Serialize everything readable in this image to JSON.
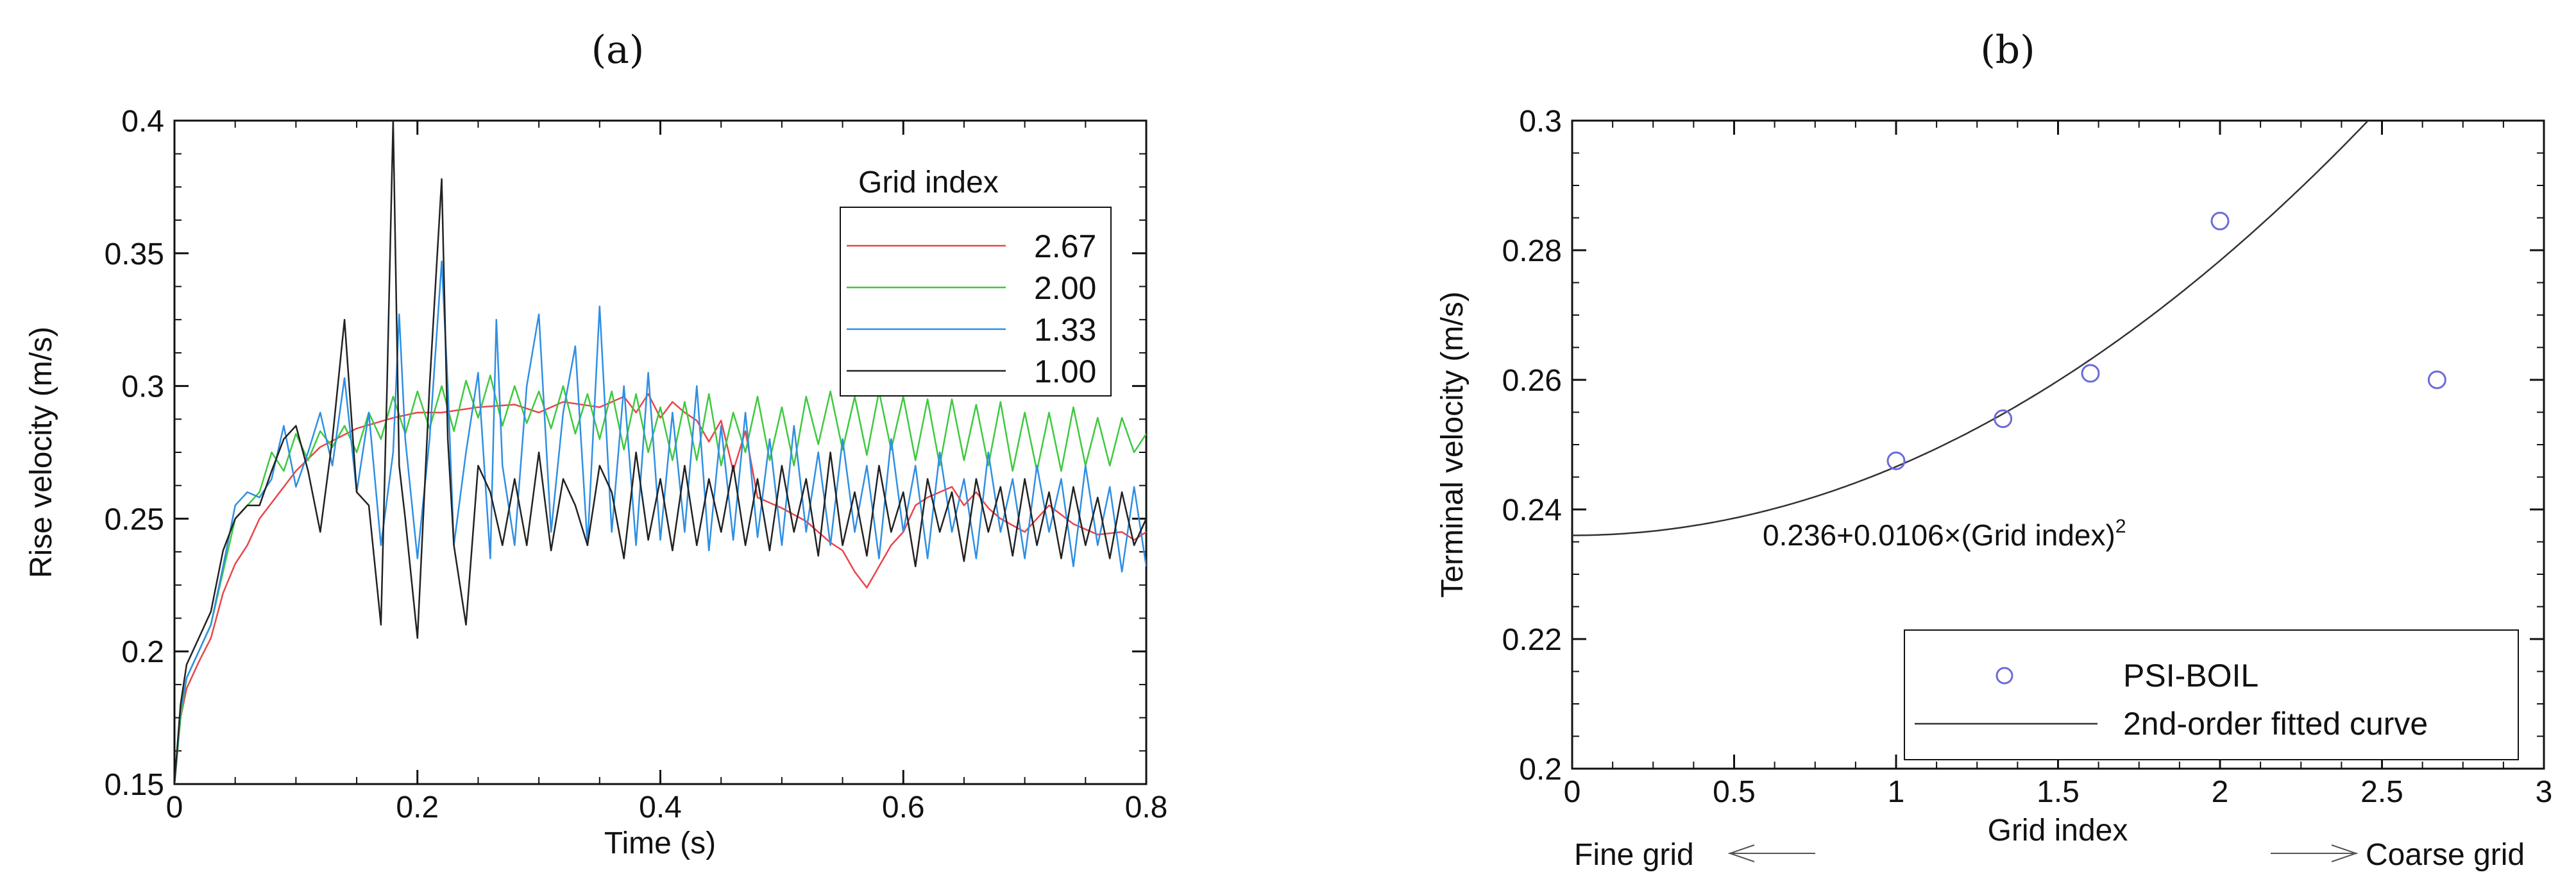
{
  "chart_data": [
    {
      "panel_label": "(a)",
      "type": "line",
      "xlabel": "Time (s)",
      "ylabel": "Rise velocity (m/s)",
      "xlim": [
        0,
        0.8
      ],
      "ylim": [
        0.15,
        0.4
      ],
      "xticks": [
        "0",
        "0.2",
        "0.4",
        "0.6",
        "0.8"
      ],
      "yticks": [
        "0.15",
        "0.2",
        "0.25",
        "0.3",
        "0.35",
        "0.4"
      ],
      "legend_title": "Grid index",
      "legend_position": "top-right",
      "series": [
        {
          "name": "2.67",
          "color": "#e8464a",
          "x": [
            0.0,
            0.005,
            0.01,
            0.02,
            0.03,
            0.04,
            0.05,
            0.06,
            0.07,
            0.08,
            0.1,
            0.12,
            0.15,
            0.18,
            0.2,
            0.22,
            0.25,
            0.28,
            0.3,
            0.32,
            0.35,
            0.37,
            0.38,
            0.39,
            0.4,
            0.41,
            0.42,
            0.43,
            0.44,
            0.45,
            0.46,
            0.47,
            0.48,
            0.5,
            0.52,
            0.54,
            0.55,
            0.56,
            0.57,
            0.58,
            0.59,
            0.6,
            0.61,
            0.62,
            0.63,
            0.64,
            0.65,
            0.66,
            0.67,
            0.68,
            0.7,
            0.72,
            0.74,
            0.76,
            0.78,
            0.79,
            0.8
          ],
          "y": [
            0.15,
            0.175,
            0.186,
            0.196,
            0.205,
            0.222,
            0.233,
            0.24,
            0.25,
            0.256,
            0.268,
            0.277,
            0.284,
            0.288,
            0.29,
            0.29,
            0.292,
            0.293,
            0.29,
            0.294,
            0.292,
            0.296,
            0.29,
            0.297,
            0.288,
            0.294,
            0.29,
            0.287,
            0.279,
            0.287,
            0.268,
            0.283,
            0.258,
            0.254,
            0.249,
            0.241,
            0.238,
            0.23,
            0.224,
            0.232,
            0.24,
            0.245,
            0.255,
            0.258,
            0.26,
            0.262,
            0.255,
            0.26,
            0.254,
            0.25,
            0.245,
            0.255,
            0.248,
            0.244,
            0.245,
            0.242,
            0.245
          ]
        },
        {
          "name": "2.00",
          "color": "#3ec93e",
          "x": [
            0.0,
            0.005,
            0.01,
            0.02,
            0.03,
            0.04,
            0.05,
            0.06,
            0.07,
            0.08,
            0.09,
            0.1,
            0.11,
            0.12,
            0.13,
            0.14,
            0.15,
            0.16,
            0.17,
            0.18,
            0.19,
            0.2,
            0.21,
            0.22,
            0.23,
            0.24,
            0.25,
            0.26,
            0.27,
            0.28,
            0.29,
            0.3,
            0.31,
            0.32,
            0.33,
            0.34,
            0.35,
            0.36,
            0.37,
            0.38,
            0.39,
            0.4,
            0.41,
            0.42,
            0.43,
            0.44,
            0.45,
            0.46,
            0.47,
            0.48,
            0.49,
            0.5,
            0.51,
            0.52,
            0.53,
            0.54,
            0.55,
            0.56,
            0.57,
            0.58,
            0.59,
            0.6,
            0.61,
            0.62,
            0.63,
            0.64,
            0.65,
            0.66,
            0.67,
            0.68,
            0.69,
            0.7,
            0.71,
            0.72,
            0.73,
            0.74,
            0.75,
            0.76,
            0.77,
            0.78,
            0.79,
            0.8
          ],
          "y": [
            0.15,
            0.175,
            0.19,
            0.2,
            0.21,
            0.23,
            0.25,
            0.255,
            0.26,
            0.275,
            0.268,
            0.282,
            0.272,
            0.283,
            0.277,
            0.285,
            0.275,
            0.29,
            0.28,
            0.296,
            0.282,
            0.298,
            0.284,
            0.3,
            0.283,
            0.302,
            0.288,
            0.304,
            0.285,
            0.3,
            0.286,
            0.298,
            0.284,
            0.3,
            0.282,
            0.297,
            0.28,
            0.298,
            0.276,
            0.297,
            0.275,
            0.292,
            0.272,
            0.294,
            0.272,
            0.297,
            0.27,
            0.29,
            0.275,
            0.296,
            0.272,
            0.292,
            0.27,
            0.296,
            0.278,
            0.298,
            0.276,
            0.296,
            0.274,
            0.298,
            0.276,
            0.296,
            0.272,
            0.295,
            0.27,
            0.295,
            0.272,
            0.293,
            0.27,
            0.294,
            0.268,
            0.29,
            0.268,
            0.29,
            0.268,
            0.292,
            0.27,
            0.288,
            0.27,
            0.288,
            0.275,
            0.282
          ]
        },
        {
          "name": "1.33",
          "color": "#2f8fe3",
          "x": [
            0.0,
            0.005,
            0.01,
            0.02,
            0.03,
            0.04,
            0.05,
            0.06,
            0.07,
            0.08,
            0.09,
            0.1,
            0.11,
            0.12,
            0.13,
            0.14,
            0.15,
            0.16,
            0.17,
            0.18,
            0.185,
            0.19,
            0.2,
            0.21,
            0.22,
            0.225,
            0.23,
            0.24,
            0.25,
            0.26,
            0.265,
            0.27,
            0.28,
            0.29,
            0.3,
            0.31,
            0.32,
            0.33,
            0.34,
            0.35,
            0.36,
            0.37,
            0.38,
            0.39,
            0.4,
            0.41,
            0.42,
            0.43,
            0.44,
            0.45,
            0.46,
            0.47,
            0.48,
            0.49,
            0.5,
            0.51,
            0.52,
            0.53,
            0.54,
            0.55,
            0.56,
            0.57,
            0.58,
            0.59,
            0.6,
            0.61,
            0.62,
            0.63,
            0.64,
            0.65,
            0.66,
            0.67,
            0.68,
            0.69,
            0.7,
            0.71,
            0.72,
            0.73,
            0.74,
            0.75,
            0.76,
            0.77,
            0.78,
            0.79,
            0.8
          ],
          "y": [
            0.15,
            0.178,
            0.19,
            0.2,
            0.21,
            0.232,
            0.255,
            0.26,
            0.258,
            0.265,
            0.285,
            0.262,
            0.275,
            0.29,
            0.27,
            0.303,
            0.26,
            0.29,
            0.24,
            0.275,
            0.327,
            0.28,
            0.235,
            0.28,
            0.347,
            0.3,
            0.24,
            0.275,
            0.305,
            0.235,
            0.325,
            0.27,
            0.24,
            0.3,
            0.327,
            0.245,
            0.29,
            0.315,
            0.24,
            0.33,
            0.245,
            0.3,
            0.24,
            0.305,
            0.242,
            0.29,
            0.245,
            0.3,
            0.238,
            0.285,
            0.242,
            0.29,
            0.243,
            0.28,
            0.24,
            0.285,
            0.245,
            0.275,
            0.24,
            0.28,
            0.245,
            0.27,
            0.235,
            0.28,
            0.245,
            0.27,
            0.235,
            0.275,
            0.245,
            0.265,
            0.235,
            0.275,
            0.245,
            0.265,
            0.235,
            0.27,
            0.245,
            0.265,
            0.232,
            0.27,
            0.24,
            0.262,
            0.23,
            0.262,
            0.232
          ]
        },
        {
          "name": "1.00",
          "color": "#222222",
          "x": [
            0.0,
            0.005,
            0.01,
            0.02,
            0.03,
            0.04,
            0.05,
            0.06,
            0.07,
            0.08,
            0.09,
            0.1,
            0.11,
            0.12,
            0.13,
            0.14,
            0.15,
            0.16,
            0.17,
            0.175,
            0.18,
            0.185,
            0.19,
            0.2,
            0.21,
            0.22,
            0.225,
            0.23,
            0.24,
            0.25,
            0.26,
            0.27,
            0.28,
            0.29,
            0.3,
            0.31,
            0.32,
            0.33,
            0.34,
            0.35,
            0.36,
            0.37,
            0.38,
            0.39,
            0.4,
            0.41,
            0.42,
            0.43,
            0.44,
            0.45,
            0.46,
            0.47,
            0.48,
            0.49,
            0.5,
            0.51,
            0.52,
            0.53,
            0.54,
            0.55,
            0.56,
            0.57,
            0.58,
            0.59,
            0.6,
            0.61,
            0.62,
            0.63,
            0.64,
            0.65,
            0.66,
            0.67,
            0.68,
            0.69,
            0.7,
            0.71,
            0.72,
            0.73,
            0.74,
            0.75,
            0.76,
            0.77,
            0.78,
            0.79,
            0.8
          ],
          "y": [
            0.15,
            0.18,
            0.195,
            0.205,
            0.215,
            0.238,
            0.25,
            0.255,
            0.255,
            0.268,
            0.28,
            0.285,
            0.268,
            0.245,
            0.28,
            0.325,
            0.26,
            0.255,
            0.21,
            0.3,
            0.4,
            0.27,
            0.25,
            0.205,
            0.3,
            0.378,
            0.28,
            0.24,
            0.21,
            0.27,
            0.26,
            0.24,
            0.265,
            0.24,
            0.275,
            0.238,
            0.265,
            0.255,
            0.24,
            0.27,
            0.26,
            0.235,
            0.275,
            0.242,
            0.265,
            0.238,
            0.27,
            0.24,
            0.265,
            0.245,
            0.27,
            0.24,
            0.265,
            0.238,
            0.27,
            0.245,
            0.265,
            0.236,
            0.275,
            0.24,
            0.26,
            0.236,
            0.27,
            0.245,
            0.26,
            0.232,
            0.265,
            0.245,
            0.26,
            0.234,
            0.265,
            0.245,
            0.262,
            0.236,
            0.265,
            0.24,
            0.26,
            0.235,
            0.262,
            0.24,
            0.258,
            0.235,
            0.26,
            0.24,
            0.25
          ]
        }
      ]
    },
    {
      "panel_label": "(b)",
      "type": "scatter",
      "xlabel": "Grid index",
      "ylabel": "Terminal velocity (m/s)",
      "xlim": [
        0,
        3
      ],
      "ylim": [
        0.2,
        0.3
      ],
      "xticks": [
        "0",
        "0.5",
        "1",
        "1.5",
        "2",
        "2.5",
        "3"
      ],
      "yticks": [
        "0.2",
        "0.22",
        "0.24",
        "0.26",
        "0.28",
        "0.3"
      ],
      "legend_position": "bottom-right",
      "points": {
        "name": "PSI-BOIL",
        "color": "#6b6bdc",
        "x": [
          1.0,
          1.33,
          1.6,
          2.0,
          2.67
        ],
        "y": [
          0.2475,
          0.254,
          0.261,
          0.2845,
          0.26
        ]
      },
      "fit": {
        "name": "2nd-order fitted curve",
        "color": "#333333",
        "a": 0.236,
        "b": 0.0106
      },
      "annotation_main": "0.236+0.0106×(Grid index)",
      "annotation_sup": "2",
      "arrow_left_label": "Fine grid",
      "arrow_right_label": "Coarse grid"
    }
  ]
}
